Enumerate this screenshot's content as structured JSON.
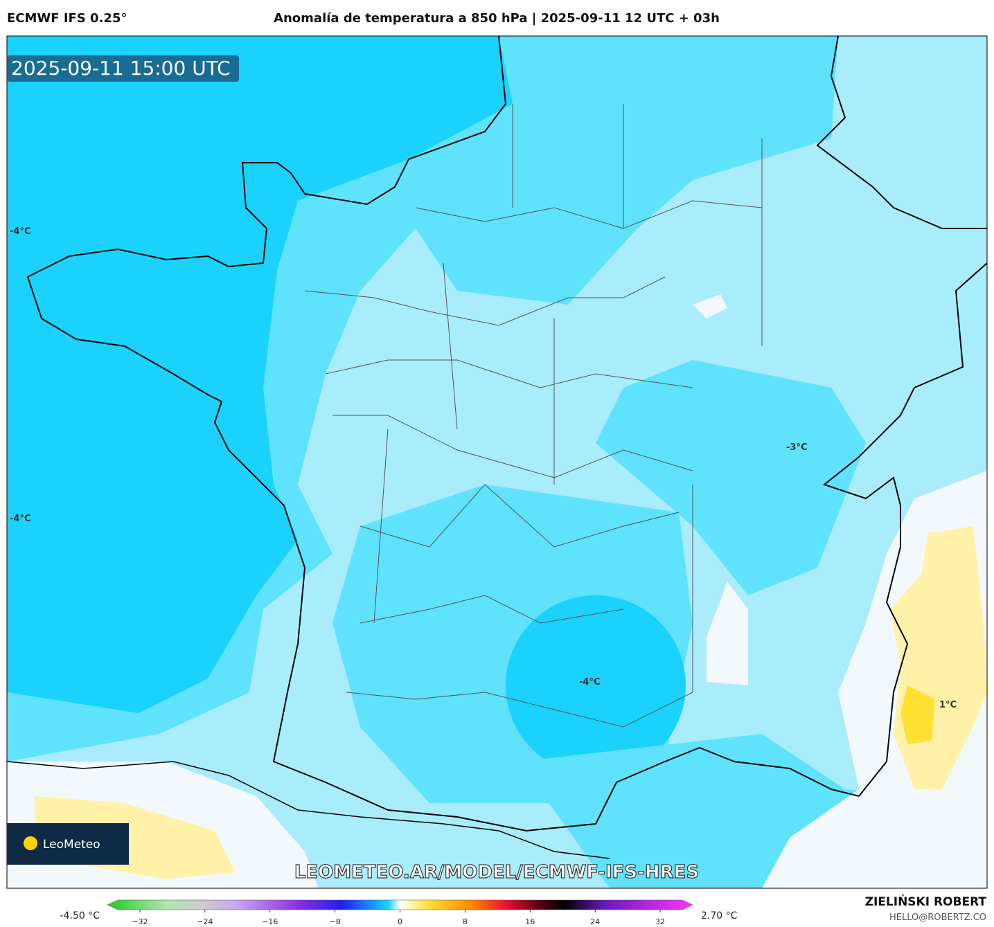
{
  "header": {
    "title_left": "ECMWF IFS 0.25°",
    "title_center": "Anomalía de temperatura a 850 hPa | 2025-09-11 12 UTC + 03h"
  },
  "map": {
    "timestamp": "2025-09-11 15:00 UTC",
    "contour_labels": [
      "-4°C",
      "-4°C",
      "-3°C",
      "-4°C",
      "1°C"
    ],
    "watermark": "LEOMETEO.AR/MODEL/ECMWF-IFS-HRES",
    "logo": "LeoMeteo"
  },
  "colorbar": {
    "min_label": "-4.50 °C",
    "max_label": "2.70 °C",
    "lim": [
      -36,
      36
    ],
    "ticks": [
      {
        "value": -32,
        "label": "−32"
      },
      {
        "value": -24,
        "label": "−24"
      },
      {
        "value": -16,
        "label": "−16"
      },
      {
        "value": -8,
        "label": "−8"
      },
      0,
      8,
      16,
      24,
      32
    ]
  },
  "footer": {
    "author": "ZIELIŃSKI ROBERT",
    "email": "HELLO@ROBERTZ.CO"
  }
}
